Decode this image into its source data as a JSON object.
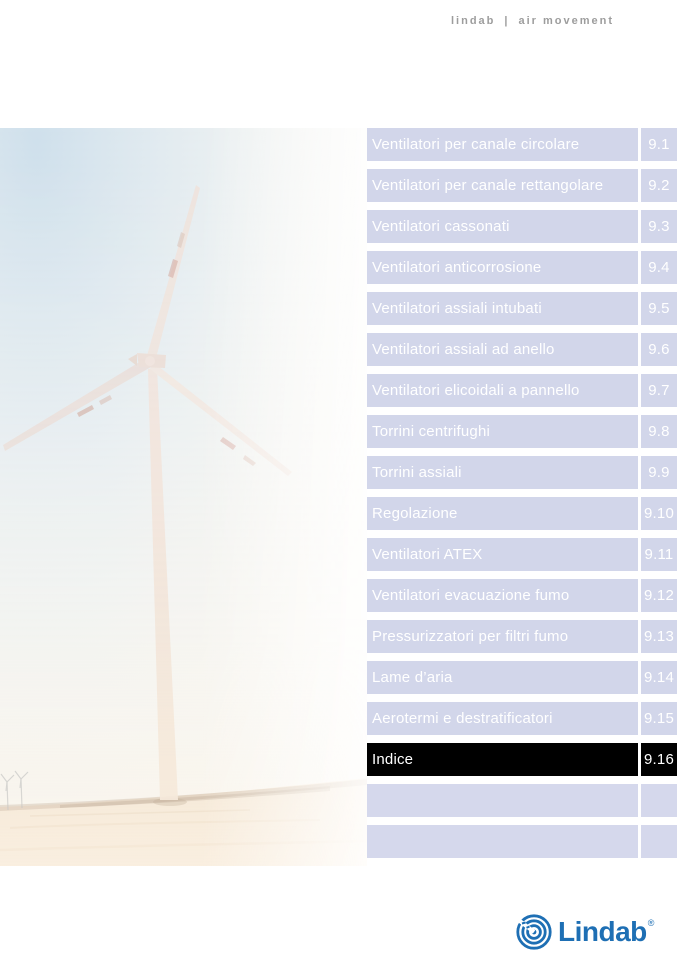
{
  "header": {
    "brand": "lindab",
    "separator": "|",
    "tagline": "air movement",
    "color": "#9d9d9d"
  },
  "photo": {
    "description": "faded photo of a large wind turbine on sandy terrain with two small distant turbines"
  },
  "menu": {
    "row_color": "#d2d6ea",
    "active_color": "#000000",
    "text_color": "#ffffff",
    "empty_rows": 2,
    "items": [
      {
        "label": "Ventilatori per canale circolare",
        "number": "9.1",
        "active": false
      },
      {
        "label": "Ventilatori per canale rettangolare",
        "number": "9.2",
        "active": false
      },
      {
        "label": "Ventilatori cassonati",
        "number": "9.3",
        "active": false
      },
      {
        "label": "Ventilatori anticorrosione",
        "number": "9.4",
        "active": false
      },
      {
        "label": "Ventilatori assiali intubati",
        "number": "9.5",
        "active": false
      },
      {
        "label": "Ventilatori assiali ad anello",
        "number": "9.6",
        "active": false
      },
      {
        "label": "Ventilatori elicoidali a pannello",
        "number": "9.7",
        "active": false
      },
      {
        "label": "Torrini centrifughi",
        "number": "9.8",
        "active": false
      },
      {
        "label": "Torrini assiali",
        "number": "9.9",
        "active": false
      },
      {
        "label": "Regolazione",
        "number": "9.10",
        "active": false
      },
      {
        "label": "Ventilatori ATEX",
        "number": "9.11",
        "active": false
      },
      {
        "label": "Ventilatori evacuazione fumo",
        "number": "9.12",
        "active": false
      },
      {
        "label": "Pressurizzatori per filtri fumo",
        "number": "9.13",
        "active": false
      },
      {
        "label": "Lame d’aria",
        "number": "9.14",
        "active": false
      },
      {
        "label": "Aerotermi e destratificatori",
        "number": "9.15",
        "active": false
      },
      {
        "label": "Indice",
        "number": "9.16",
        "active": true
      }
    ]
  },
  "footer": {
    "logo_text": "Lindab",
    "registered": "®",
    "logo_color": "#1e6fb4"
  }
}
